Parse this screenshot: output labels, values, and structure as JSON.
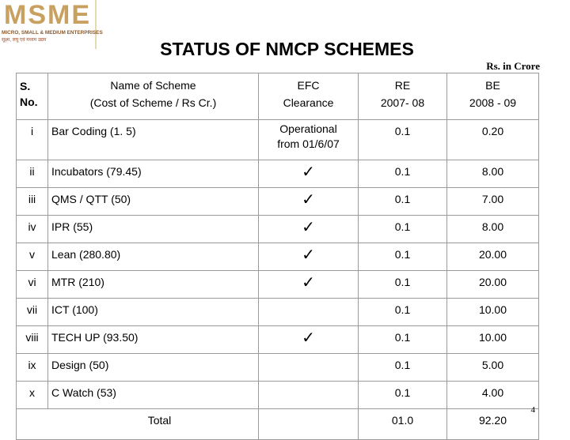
{
  "logo": {
    "wordmark": "MSME",
    "subtitle": "MICRO, SMALL & MEDIUM ENTERPRISES",
    "tagline": "सूक्ष्म, लघु एवं मध्यम उद्यम"
  },
  "title": "STATUS OF NMCP SCHEMES",
  "units": "Rs. in Crore",
  "headers": {
    "sno": [
      "S.",
      "No."
    ],
    "name": [
      "Name of Scheme",
      "(Cost of Scheme / Rs Cr.)"
    ],
    "efc": [
      "EFC",
      "Clearance"
    ],
    "re": [
      "RE",
      "2007- 08"
    ],
    "be": [
      "BE",
      "2008 - 09"
    ]
  },
  "rows": [
    {
      "sno": "i",
      "name": "Bar Coding (1. 5)",
      "efc": [
        "Operational",
        "from 01/6/07"
      ],
      "re": "0.1",
      "be": "0.20"
    },
    {
      "sno": "ii",
      "name": "Incubators (79.45)",
      "efc": "✓",
      "re": "0.1",
      "be": "8.00"
    },
    {
      "sno": "iii",
      "name": "QMS / QTT  (50)",
      "efc": "✓",
      "re": "0.1",
      "be": "7.00"
    },
    {
      "sno": "iv",
      "name": "IPR (55)",
      "efc": "✓",
      "re": "0.1",
      "be": "8.00"
    },
    {
      "sno": "v",
      "name": "Lean  (280.80)",
      "efc": "✓",
      "re": "0.1",
      "be": "20.00"
    },
    {
      "sno": "vi",
      "name": "MTR (210)",
      "efc": "✓",
      "re": "0.1",
      "be": "20.00"
    },
    {
      "sno": "vii",
      "name": "ICT (100)",
      "efc": "",
      "re": "0.1",
      "be": "10.00"
    },
    {
      "sno": "viii",
      "name": "TECH UP (93.50)",
      "efc": "✓",
      "re": "0.1",
      "be": "10.00"
    },
    {
      "sno": "ix",
      "name": "Design (50)",
      "efc": "",
      "re": "0.1",
      "be": "5.00"
    },
    {
      "sno": "x",
      "name": "C Watch (53)",
      "efc": "",
      "re": "0.1",
      "be": "4.00"
    }
  ],
  "total": {
    "label": "Total",
    "re": "01.0",
    "be": "92.20"
  },
  "page_number": "4"
}
